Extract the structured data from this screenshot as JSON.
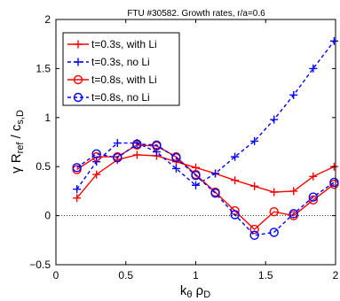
{
  "chart_data": {
    "type": "line",
    "title": "FTU #30582. Growth rates, r/a=0.6",
    "xlabel": {
      "main": "k",
      "sub1": "θ",
      "gap": " ",
      "main2": "ρ",
      "sub2": "D"
    },
    "ylabel": {
      "main": "γ R",
      "sub1": "ref",
      "sep": " / c",
      "sub2": "s,D"
    },
    "xlim": [
      0,
      2
    ],
    "ylim": [
      -0.5,
      2
    ],
    "xticks": [
      0,
      0.5,
      1,
      1.5,
      2
    ],
    "xtick_labels": [
      "0",
      "0.5",
      "1",
      "1.5",
      "2"
    ],
    "yticks": [
      -0.5,
      0,
      0.5,
      1,
      1.5,
      2
    ],
    "ytick_labels": [
      "−0.5",
      "0",
      "0.5",
      "1",
      "1.5",
      "2"
    ],
    "zero_line": true,
    "legend_position": "top-left",
    "series": [
      {
        "name": "t=0.3s, with Li",
        "color": "#ff0000",
        "dash": "solid",
        "marker": "plus",
        "x": [
          0.15,
          0.29,
          0.44,
          0.58,
          0.72,
          0.86,
          1.0,
          1.14,
          1.28,
          1.42,
          1.56,
          1.7,
          1.84,
          1.99
        ],
        "y": [
          0.18,
          0.42,
          0.57,
          0.62,
          0.61,
          0.55,
          0.49,
          0.43,
          0.36,
          0.3,
          0.24,
          0.25,
          0.4,
          0.5
        ]
      },
      {
        "name": "t=0.3s, no Li",
        "color": "#0000ff",
        "dash": "dashed",
        "marker": "plus",
        "x": [
          0.15,
          0.29,
          0.44,
          0.58,
          0.72,
          0.86,
          1.0,
          1.14,
          1.28,
          1.42,
          1.56,
          1.7,
          1.84,
          1.99
        ],
        "y": [
          0.27,
          0.55,
          0.74,
          0.74,
          0.65,
          0.48,
          0.31,
          0.43,
          0.6,
          0.76,
          0.98,
          1.23,
          1.5,
          1.78
        ]
      },
      {
        "name": "t=0.8s, with Li",
        "color": "#ff0000",
        "dash": "solid",
        "marker": "circle",
        "x": [
          0.15,
          0.29,
          0.44,
          0.58,
          0.72,
          0.86,
          1.0,
          1.14,
          1.28,
          1.42,
          1.56,
          1.7,
          1.84,
          1.99
        ],
        "y": [
          0.47,
          0.6,
          0.6,
          0.72,
          0.71,
          0.6,
          0.42,
          0.24,
          0.05,
          -0.14,
          0.04,
          0.0,
          0.16,
          0.32
        ]
      },
      {
        "name": "t=0.8s, no Li",
        "color": "#0000ff",
        "dash": "dashed",
        "marker": "circle",
        "x": [
          0.15,
          0.29,
          0.44,
          0.58,
          0.72,
          0.86,
          1.0,
          1.14,
          1.28,
          1.42,
          1.56,
          1.7,
          1.84,
          1.99
        ],
        "y": [
          0.49,
          0.63,
          0.59,
          0.73,
          0.72,
          0.59,
          0.41,
          0.23,
          0.01,
          -0.2,
          -0.17,
          0.02,
          0.19,
          0.34
        ]
      }
    ]
  }
}
